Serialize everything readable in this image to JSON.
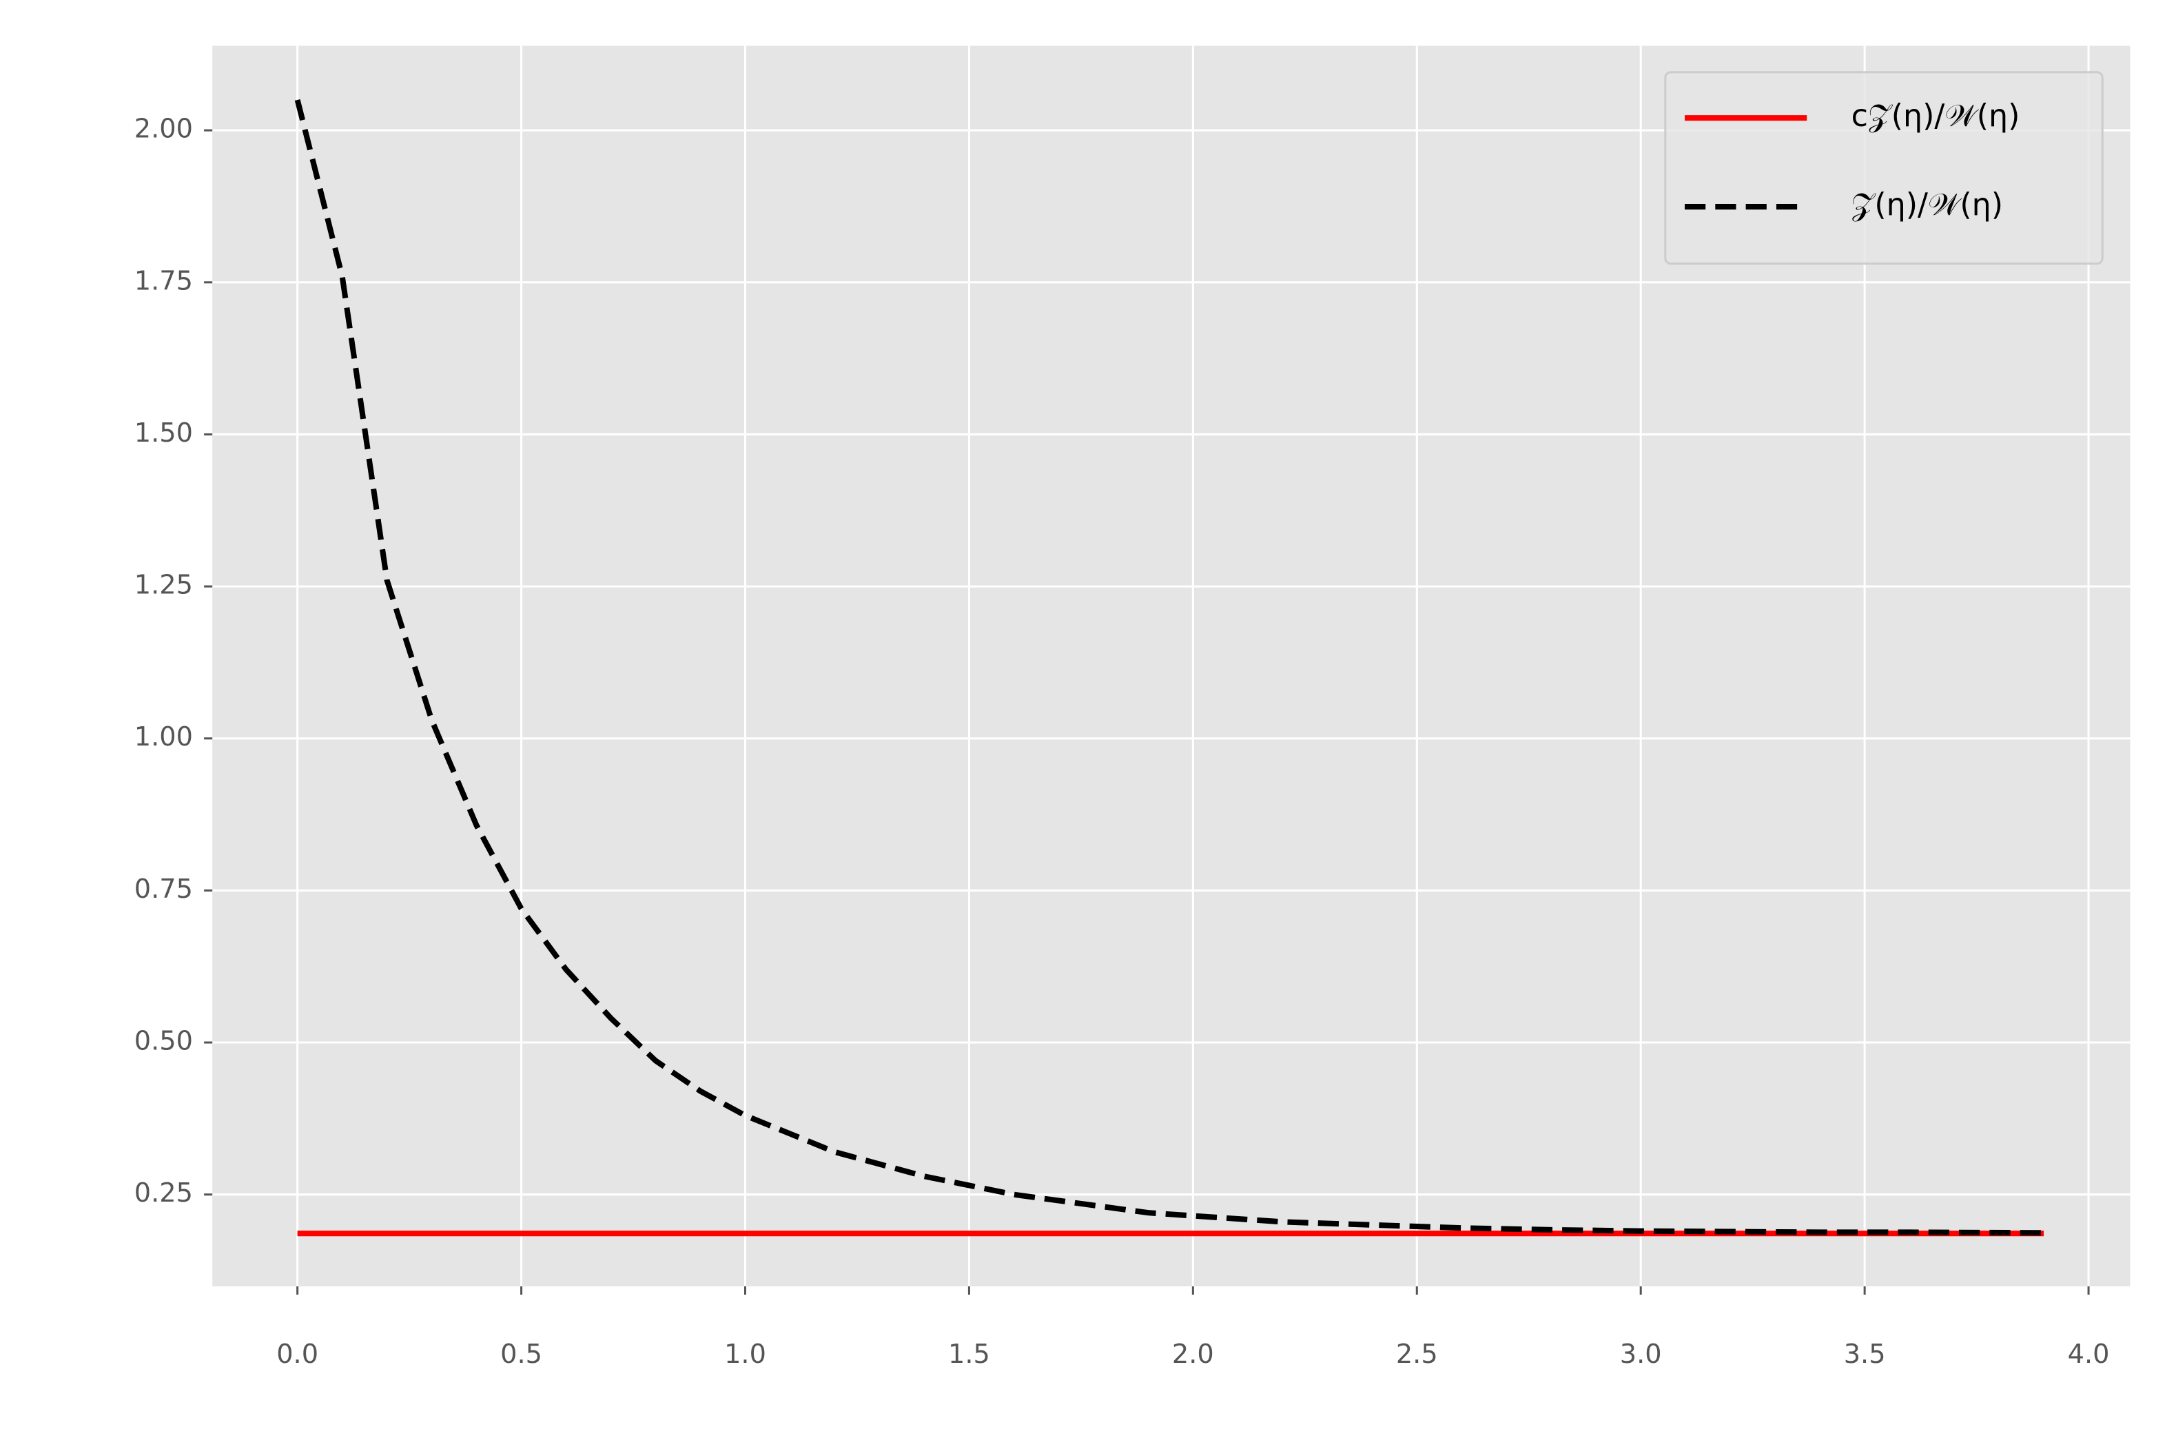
{
  "chart_data": {
    "type": "line",
    "xlim": [
      -0.19,
      4.093
    ],
    "ylim": [
      0.099,
      2.139
    ],
    "xticks": [
      {
        "value": 0,
        "label": "0.0"
      },
      0.5,
      {
        "value": 1,
        "label": "1.0"
      },
      1.5,
      {
        "value": 2,
        "label": "2.0"
      },
      2.5,
      {
        "value": 3,
        "label": "3.0"
      },
      3.5,
      {
        "value": 4,
        "label": "4.0"
      }
    ],
    "yticks": [
      0.25,
      {
        "value": 0.5,
        "label": "0.50"
      },
      0.75,
      {
        "value": 1,
        "label": "1.00"
      },
      1.25,
      {
        "value": 1.5,
        "label": "1.50"
      },
      1.75,
      {
        "value": 2,
        "label": "2.00"
      }
    ],
    "grid": true,
    "legend": "upper right",
    "series": [
      {
        "name": "c𝒵(η)/𝒲(η)",
        "color": "#ff0000",
        "dash": false,
        "x": [
          0,
          3.9
        ],
        "values": [
          0.186,
          0.186
        ]
      },
      {
        "name": "𝒵(η)/𝒲(η)",
        "color": "#000000",
        "dash": true,
        "x": [
          0,
          0.1,
          0.2,
          0.3,
          0.4,
          0.5,
          0.6,
          0.7,
          0.8,
          0.9,
          1.0,
          1.1,
          1.2,
          1.3,
          1.4,
          1.5,
          1.6,
          1.7,
          1.8,
          1.9,
          2.0,
          2.2,
          2.4,
          2.6,
          2.8,
          3.0,
          3.2,
          3.4,
          3.6,
          3.9
        ],
        "values": [
          2.05,
          1.76,
          1.26,
          1.03,
          0.857,
          0.72,
          0.62,
          0.54,
          0.47,
          0.42,
          0.38,
          0.35,
          0.32,
          0.3,
          0.28,
          0.265,
          0.25,
          0.24,
          0.23,
          0.22,
          0.215,
          0.205,
          0.2,
          0.195,
          0.192,
          0.19,
          0.189,
          0.188,
          0.188,
          0.187
        ]
      }
    ]
  }
}
